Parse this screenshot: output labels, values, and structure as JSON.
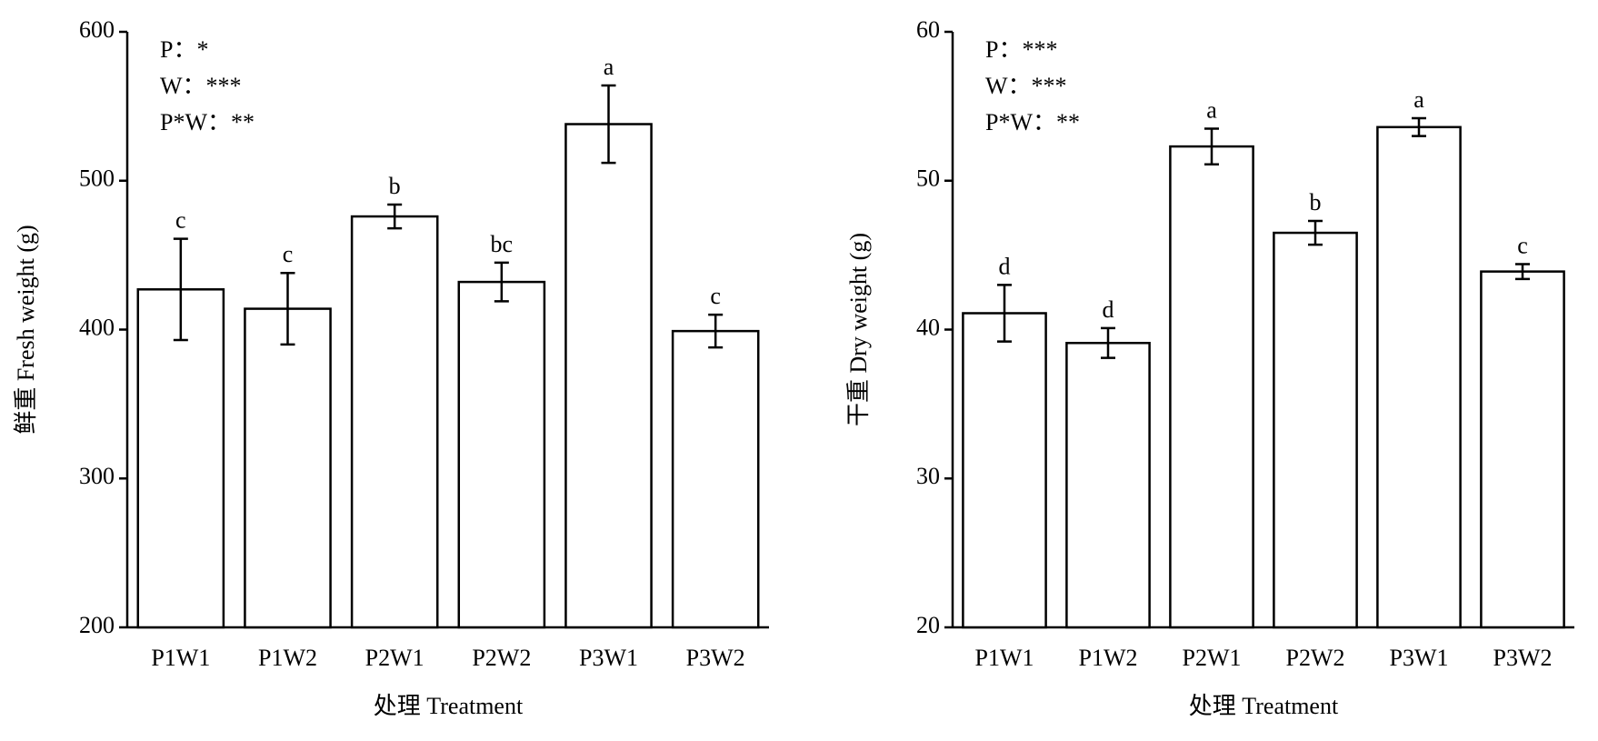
{
  "chart_data": [
    {
      "type": "bar",
      "ylabel": "鲜重 Fresh weight (g)",
      "xlabel": "处理 Treatment",
      "categories": [
        "P1W1",
        "P1W2",
        "P2W1",
        "P2W2",
        "P3W1",
        "P3W2"
      ],
      "values": [
        427,
        414,
        476,
        432,
        538,
        399
      ],
      "errors": [
        34,
        24,
        8,
        13,
        26,
        11
      ],
      "annotations": [
        "c",
        "c",
        "b",
        "bc",
        "a",
        "c"
      ],
      "notes": [
        "P：*",
        "W：***",
        "P*W：**"
      ],
      "color": "#ffffff",
      "ylim": [
        200,
        600
      ],
      "yticks": [
        200,
        300,
        400,
        500,
        600
      ]
    },
    {
      "type": "bar",
      "ylabel": "干重 Dry weight (g)",
      "xlabel": "处理 Treatment",
      "categories": [
        "P1W1",
        "P1W2",
        "P2W1",
        "P2W2",
        "P3W1",
        "P3W2"
      ],
      "values": [
        41.1,
        39.1,
        52.3,
        46.5,
        53.6,
        43.9
      ],
      "errors": [
        1.9,
        1.0,
        1.2,
        0.8,
        0.6,
        0.5
      ],
      "annotations": [
        "d",
        "d",
        "a",
        "b",
        "a",
        "c"
      ],
      "notes": [
        "P：***",
        "W：***",
        "P*W：**"
      ],
      "color": "#ffffff",
      "ylim": [
        20,
        60
      ],
      "yticks": [
        20,
        30,
        40,
        50,
        60
      ]
    }
  ]
}
